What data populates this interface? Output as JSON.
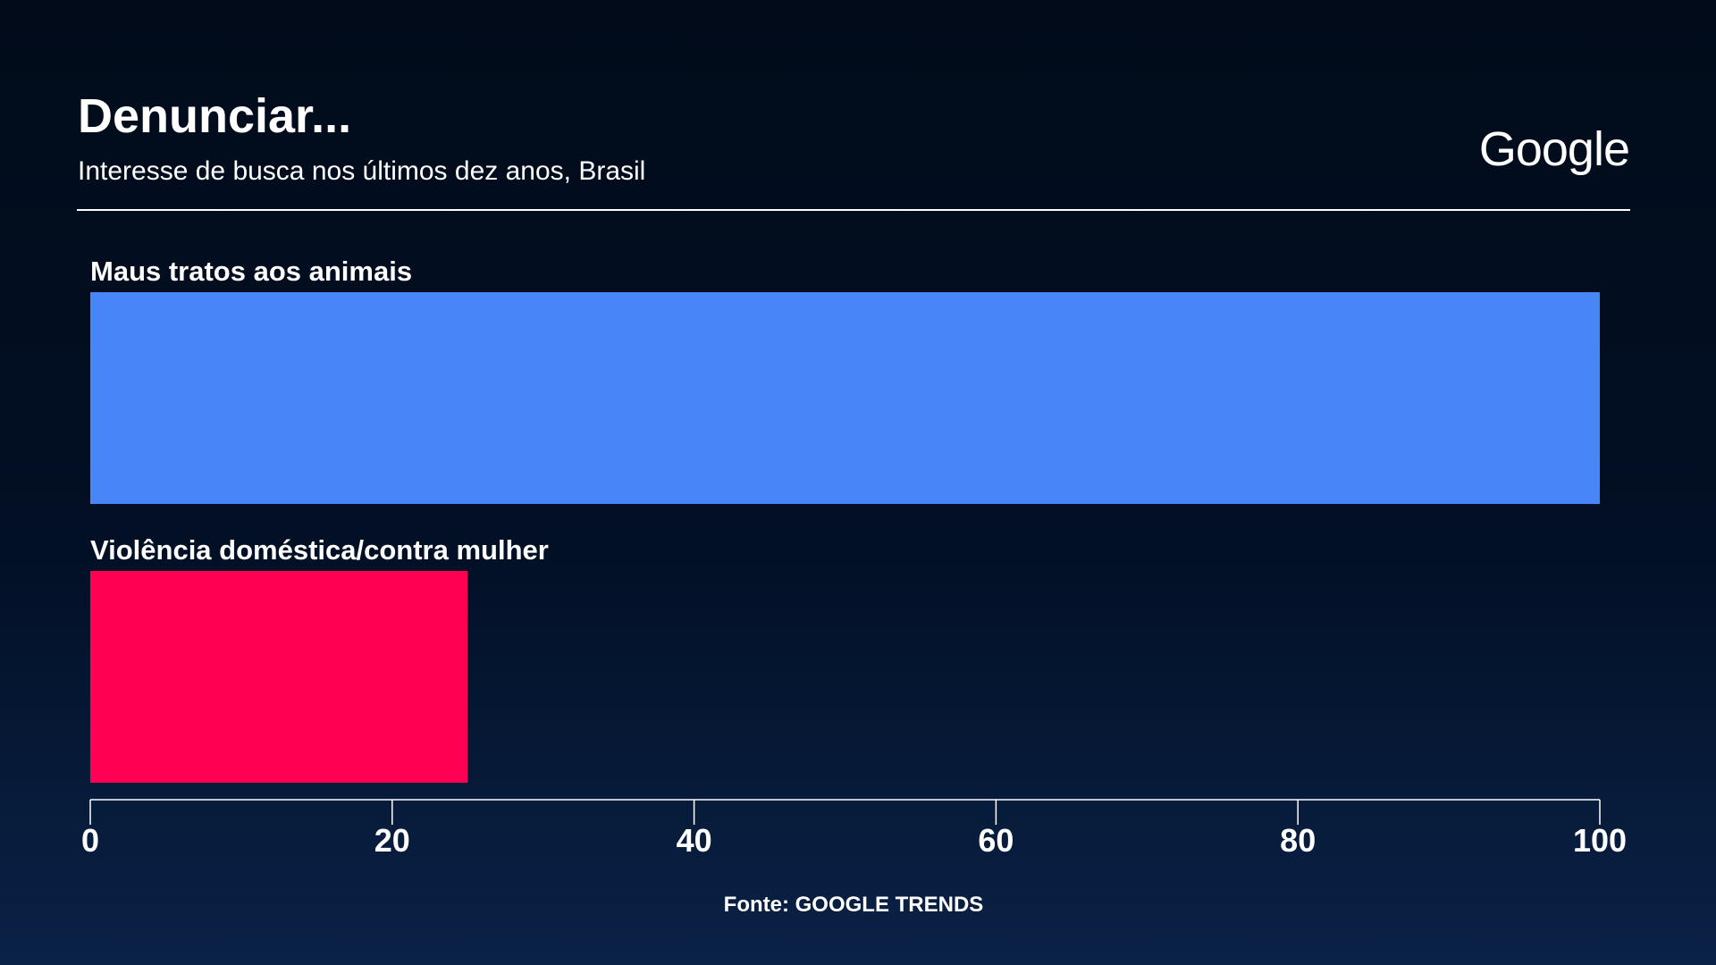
{
  "header": {
    "title": "Denunciar...",
    "subtitle": "Interesse de busca nos últimos dez anos, Brasil",
    "logo_text": "Google"
  },
  "chart_data": {
    "type": "bar",
    "orientation": "horizontal",
    "title": "",
    "categories": [
      "Maus tratos aos animais",
      "Violência doméstica/contra mulher"
    ],
    "values": [
      100,
      25
    ],
    "colors": [
      "#4885f6",
      "#ff0052"
    ],
    "xlim": [
      0,
      100
    ],
    "xticks": [
      0,
      20,
      40,
      60,
      80,
      100
    ],
    "xtick_labels": [
      "0",
      "20",
      "40",
      "60",
      "80",
      "100"
    ],
    "grid": false,
    "legend": "none"
  },
  "footer": {
    "source": "Fonte: GOOGLE TRENDS"
  }
}
